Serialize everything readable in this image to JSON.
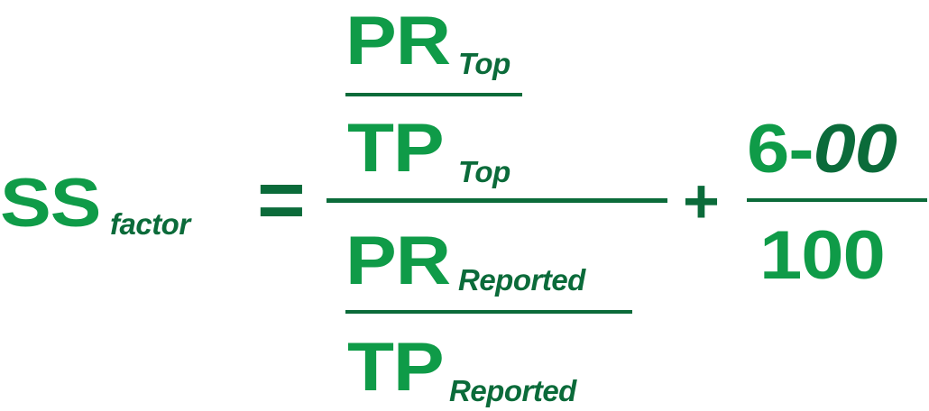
{
  "colors": {
    "bright_green": "#0f9b48",
    "dark_green": "#0b6b3a"
  },
  "formula": {
    "lhs": {
      "main": "SS",
      "sub": "factor"
    },
    "equals": "=",
    "plus": "+",
    "top_inner": {
      "numerator": {
        "main": "PR",
        "sub": "Top"
      },
      "denominator": {
        "main": "TP",
        "sub": "Top"
      }
    },
    "bottom_inner": {
      "numerator": {
        "main": "PR",
        "sub": "Reported"
      },
      "denominator": {
        "main": "TP",
        "sub": "Reported"
      }
    },
    "right_fraction": {
      "numerator_main": "6-",
      "numerator_italic": "00",
      "denominator": "100"
    }
  }
}
